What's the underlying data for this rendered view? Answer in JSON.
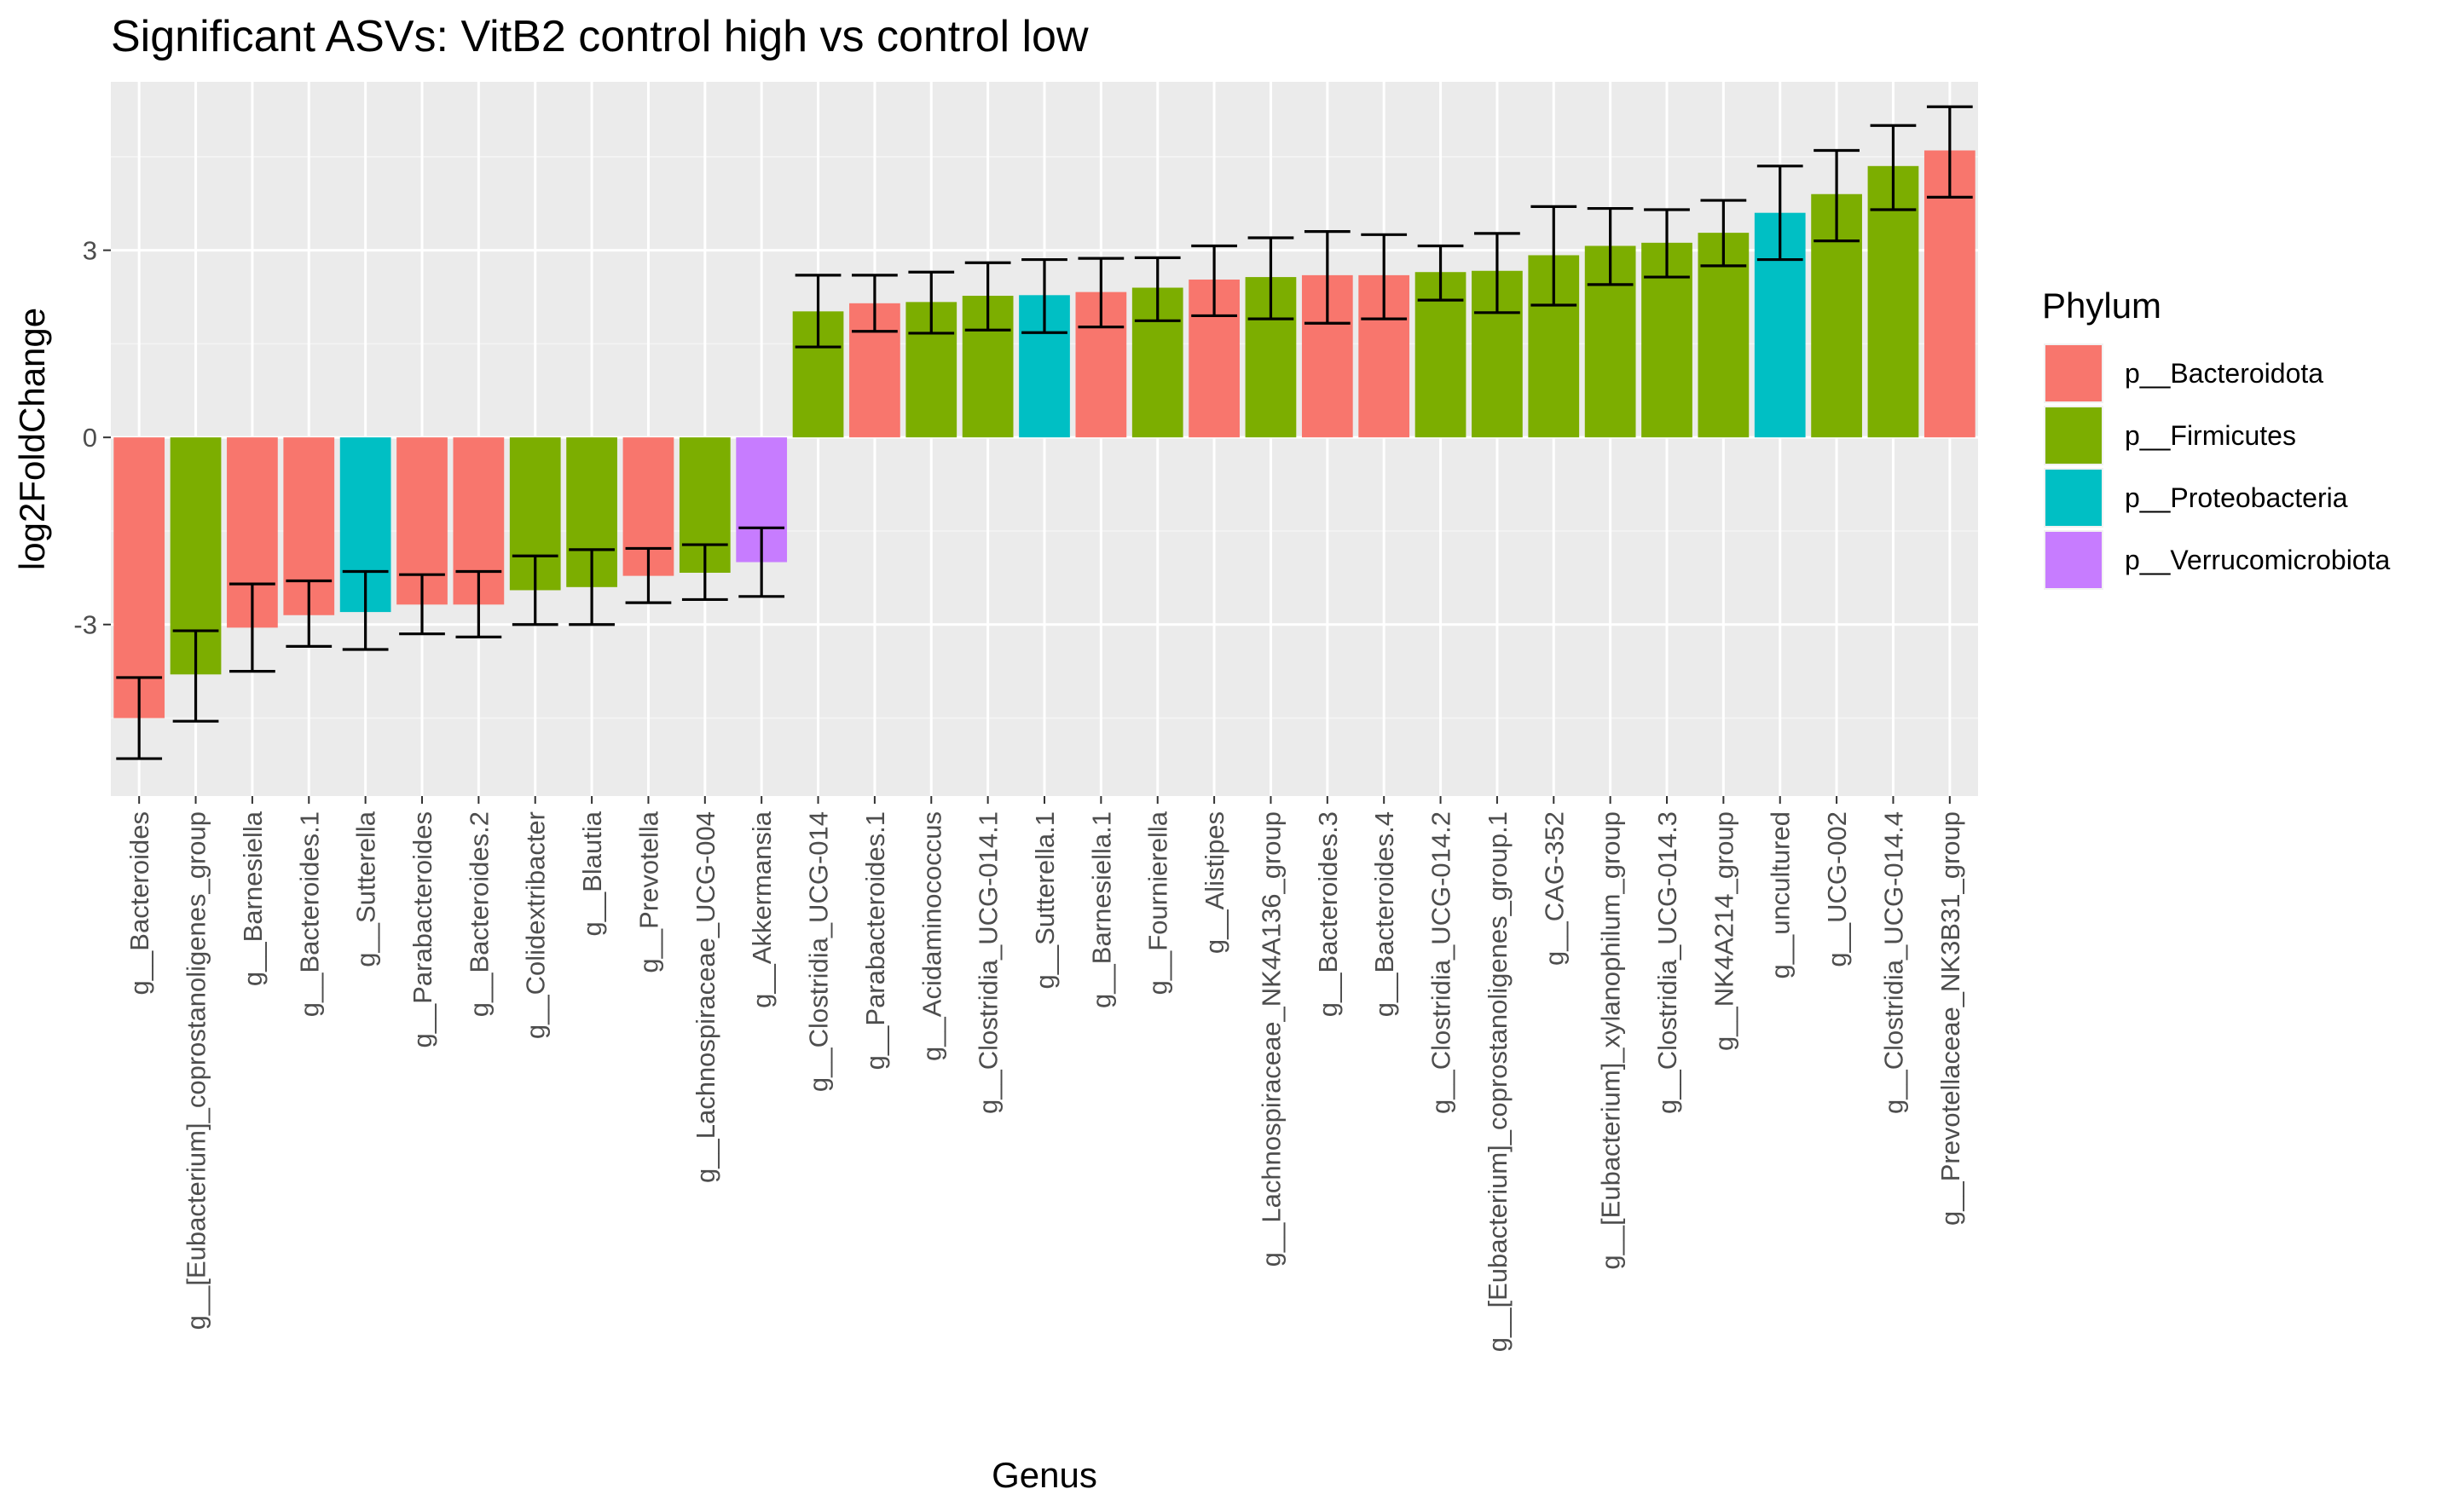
{
  "chart_data": {
    "type": "bar",
    "title": "Significant ASVs: VitB2 control high vs control low",
    "xlabel": "Genus",
    "ylabel": "log2FoldChange",
    "ylim": [
      -5.75,
      5.7
    ],
    "yticks": [
      -3,
      0,
      3
    ],
    "ytick_labels": [
      "-3",
      "0",
      "3"
    ],
    "grid": true,
    "legend": {
      "title": "Phylum",
      "position": "right",
      "entries": [
        {
          "label": "p__Bacteroidota",
          "color": "#F8766D"
        },
        {
          "label": "p__Firmicutes",
          "color": "#7CAE00"
        },
        {
          "label": "p__Proteobacteria",
          "color": "#00BFC4"
        },
        {
          "label": "p__Verrucomicrobiota",
          "color": "#C77CFF"
        }
      ]
    },
    "categories": [
      "g__Bacteroides",
      "g__[Eubacterium]_coprostanoligenes_group",
      "g__Barnesiella",
      "g__Bacteroides.1",
      "g__Sutterella",
      "g__Parabacteroides",
      "g__Bacteroides.2",
      "g__Colidextribacter",
      "g__Blautia",
      "g__Prevotella",
      "g__Lachnospiraceae_UCG-004",
      "g__Akkermansia",
      "g__Clostridia_UCG-014",
      "g__Parabacteroides.1",
      "g__Acidaminococcus",
      "g__Clostridia_UCG-014.1",
      "g__Sutterella.1",
      "g__Barnesiella.1",
      "g__Fournierella",
      "g__Alistipes",
      "g__Lachnospiraceae_NK4A136_group",
      "g__Bacteroides.3",
      "g__Bacteroides.4",
      "g__Clostridia_UCG-014.2",
      "g__[Eubacterium]_coprostanoligenes_group.1",
      "g__CAG-352",
      "g__[Eubacterium]_xylanophilum_group",
      "g__Clostridia_UCG-014.3",
      "g__NK4A214_group",
      "g__uncultured",
      "g__UCG-002",
      "g__Clostridia_UCG-014.4",
      "g__Prevotellaceae_NK3B31_group"
    ],
    "phylum": [
      "p__Bacteroidota",
      "p__Firmicutes",
      "p__Bacteroidota",
      "p__Bacteroidota",
      "p__Proteobacteria",
      "p__Bacteroidota",
      "p__Bacteroidota",
      "p__Firmicutes",
      "p__Firmicutes",
      "p__Bacteroidota",
      "p__Firmicutes",
      "p__Verrucomicrobiota",
      "p__Firmicutes",
      "p__Bacteroidota",
      "p__Firmicutes",
      "p__Firmicutes",
      "p__Proteobacteria",
      "p__Bacteroidota",
      "p__Firmicutes",
      "p__Bacteroidota",
      "p__Firmicutes",
      "p__Bacteroidota",
      "p__Bacteroidota",
      "p__Firmicutes",
      "p__Firmicutes",
      "p__Firmicutes",
      "p__Firmicutes",
      "p__Firmicutes",
      "p__Firmicutes",
      "p__Proteobacteria",
      "p__Firmicutes",
      "p__Firmicutes",
      "p__Bacteroidota"
    ],
    "values": [
      -4.5,
      -3.8,
      -3.05,
      -2.85,
      -2.8,
      -2.68,
      -2.68,
      -2.45,
      -2.4,
      -2.22,
      -2.17,
      -2.0,
      2.02,
      2.15,
      2.17,
      2.27,
      2.28,
      2.33,
      2.4,
      2.53,
      2.57,
      2.6,
      2.6,
      2.65,
      2.67,
      2.92,
      3.07,
      3.12,
      3.28,
      3.6,
      3.9,
      4.35,
      4.6
    ],
    "error_low": [
      -5.15,
      -4.55,
      -3.75,
      -3.35,
      -3.4,
      -3.15,
      -3.2,
      -3.0,
      -3.0,
      -2.65,
      -2.6,
      -2.55,
      1.45,
      1.7,
      1.67,
      1.72,
      1.68,
      1.77,
      1.87,
      1.95,
      1.9,
      1.83,
      1.9,
      2.2,
      2.0,
      2.12,
      2.45,
      2.57,
      2.75,
      2.85,
      3.15,
      3.65,
      3.85
    ],
    "error_high": [
      -3.85,
      -3.1,
      -2.35,
      -2.3,
      -2.15,
      -2.2,
      -2.15,
      -1.9,
      -1.8,
      -1.78,
      -1.72,
      -1.45,
      2.6,
      2.6,
      2.65,
      2.8,
      2.85,
      2.87,
      2.88,
      3.07,
      3.2,
      3.3,
      3.25,
      3.07,
      3.27,
      3.7,
      3.67,
      3.65,
      3.8,
      4.35,
      4.6,
      5.0,
      5.3
    ]
  }
}
